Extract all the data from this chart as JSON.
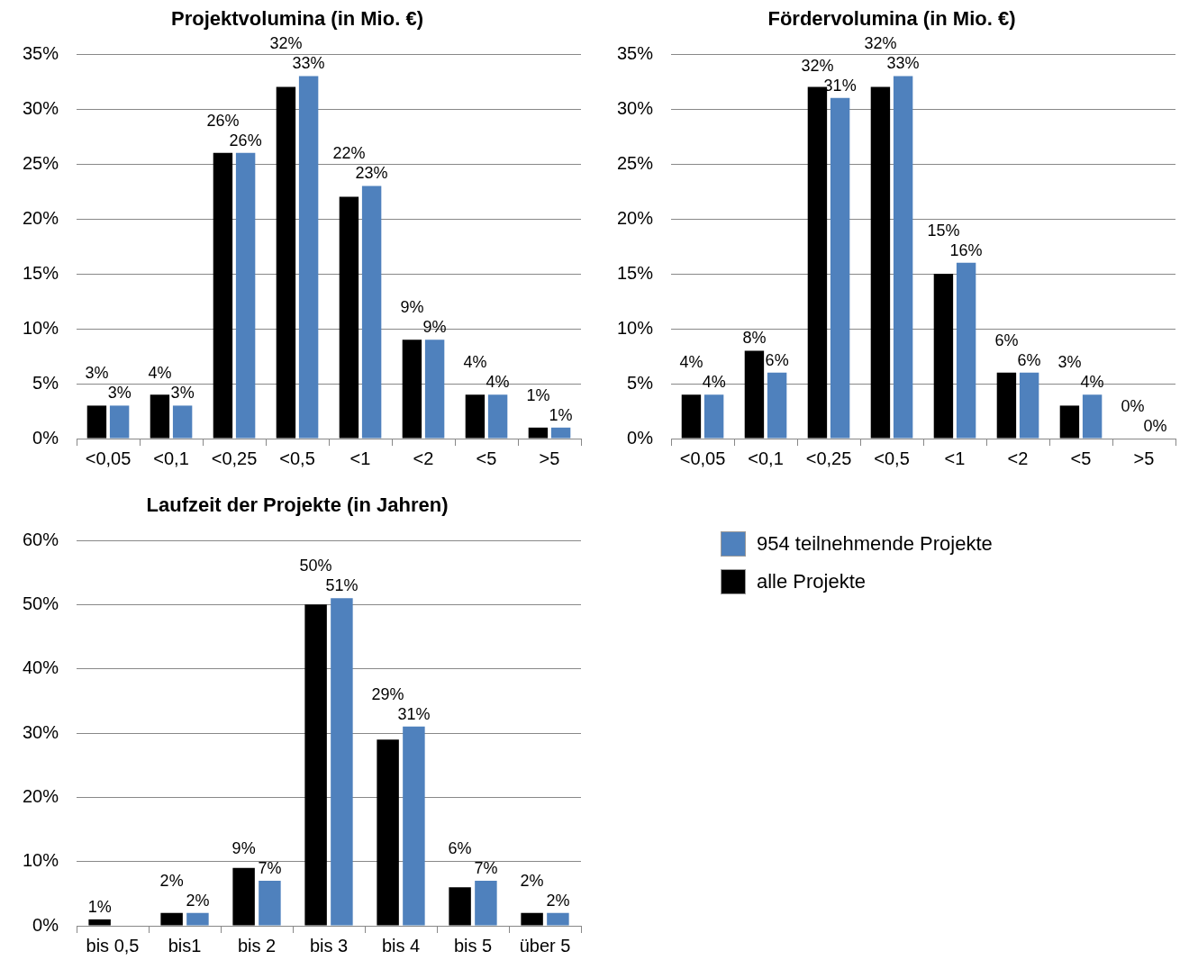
{
  "chart_data": [
    {
      "type": "bar",
      "title": "Projektvolumina (in Mio. €)",
      "categories": [
        "<0,05",
        "<0,1",
        "<0,25",
        "<0,5",
        "<1",
        "<2",
        "<5",
        ">5"
      ],
      "series": [
        {
          "color": "#000000",
          "values": [
            3,
            4,
            26,
            32,
            22,
            9,
            4,
            1
          ],
          "value_labels": [
            "3%",
            "4%",
            "26%",
            "32%",
            "22%",
            "9%",
            "4%",
            "1%"
          ]
        },
        {
          "color": "#4f81bd",
          "values": [
            3,
            3,
            26,
            33,
            23,
            9,
            4,
            1
          ],
          "value_labels": [
            "3%",
            "3%",
            "26%",
            "33%",
            "23%",
            "9%",
            "4%",
            "1%"
          ]
        }
      ],
      "ylim": [
        0,
        35
      ],
      "yticks": [
        {
          "value": 0,
          "label": "0%"
        },
        {
          "value": 5,
          "label": "5%"
        },
        {
          "value": 10,
          "label": "10%"
        },
        {
          "value": 15,
          "label": "15%"
        },
        {
          "value": 20,
          "label": "20%"
        },
        {
          "value": 25,
          "label": "25%"
        },
        {
          "value": 30,
          "label": "30%"
        },
        {
          "value": 35,
          "label": "35%"
        }
      ],
      "grid": "y"
    },
    {
      "type": "bar",
      "title": "Fördervolumina (in Mio. €)",
      "categories": [
        "<0,05",
        "<0,1",
        "<0,25",
        "<0,5",
        "<1",
        "<2",
        "<5",
        ">5"
      ],
      "series": [
        {
          "color": "#000000",
          "values": [
            4,
            8,
            32,
            32,
            15,
            6,
            3,
            0
          ],
          "value_labels": [
            "4%",
            "8%",
            "32%",
            "32%",
            "15%",
            "6%",
            "3%",
            "0%"
          ]
        },
        {
          "color": "#4f81bd",
          "values": [
            4,
            6,
            31,
            33,
            16,
            6,
            4,
            0
          ],
          "value_labels": [
            "4%",
            "6%",
            "31%",
            "33%",
            "16%",
            "6%",
            "4%",
            "0%"
          ]
        }
      ],
      "ylim": [
        0,
        35
      ],
      "yticks": [
        {
          "value": 0,
          "label": "0%"
        },
        {
          "value": 5,
          "label": "5%"
        },
        {
          "value": 10,
          "label": "10%"
        },
        {
          "value": 15,
          "label": "15%"
        },
        {
          "value": 20,
          "label": "20%"
        },
        {
          "value": 25,
          "label": "25%"
        },
        {
          "value": 30,
          "label": "30%"
        },
        {
          "value": 35,
          "label": "35%"
        }
      ],
      "grid": "y"
    },
    {
      "type": "bar",
      "title": "Laufzeit der Projekte (in Jahren)",
      "categories": [
        "bis 0,5",
        "bis1",
        "bis 2",
        "bis 3",
        "bis 4",
        "bis 5",
        "über 5"
      ],
      "series": [
        {
          "name": "alle Projekte",
          "color": "#000000",
          "values": [
            1,
            2,
            9,
            50,
            29,
            6,
            2
          ],
          "value_labels": [
            "1%",
            "2%",
            "9%",
            "50%",
            "29%",
            "6%",
            "2%"
          ]
        },
        {
          "name": "954 teilnehmende  Projekte",
          "color": "#4f81bd",
          "values": [
            null,
            2,
            7,
            51,
            31,
            7,
            2
          ],
          "value_labels": [
            null,
            "2%",
            "7%",
            "51%",
            "31%",
            "7%",
            "2%"
          ]
        }
      ],
      "ylim": [
        0,
        60
      ],
      "yticks": [
        {
          "value": 0,
          "label": "0%"
        },
        {
          "value": 10,
          "label": "10%"
        },
        {
          "value": 20,
          "label": "20%"
        },
        {
          "value": 30,
          "label": "30%"
        },
        {
          "value": 40,
          "label": "40%"
        },
        {
          "value": 50,
          "label": "50%"
        },
        {
          "value": 60,
          "label": "60%"
        }
      ],
      "grid": "y",
      "legend": "right"
    }
  ]
}
